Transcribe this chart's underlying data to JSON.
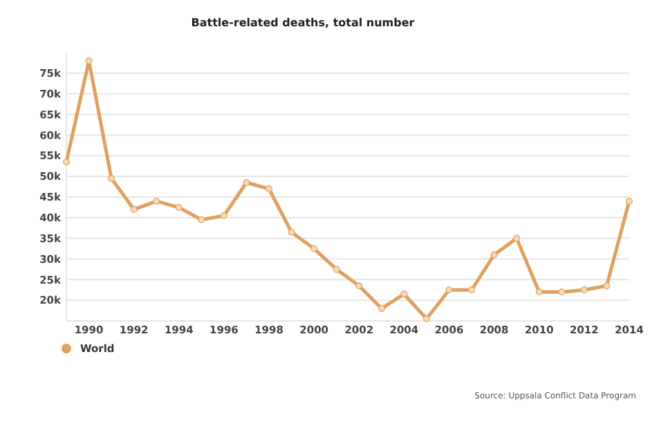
{
  "chart_data": {
    "type": "line",
    "title": "Battle-related deaths, total number",
    "x": [
      1989,
      1990,
      1991,
      1992,
      1993,
      1994,
      1995,
      1996,
      1997,
      1998,
      1999,
      2000,
      2001,
      2002,
      2003,
      2004,
      2005,
      2006,
      2007,
      2008,
      2009,
      2010,
      2011,
      2012,
      2013,
      2014
    ],
    "series": [
      {
        "name": "World",
        "color": "#e0a060",
        "values": [
          53500,
          78000,
          49500,
          42000,
          44000,
          42500,
          39500,
          40500,
          48500,
          47000,
          36500,
          32500,
          27500,
          23500,
          18000,
          21500,
          15500,
          22500,
          22500,
          31000,
          35000,
          22000,
          22000,
          22500,
          23500,
          44000
        ]
      }
    ],
    "xlim": [
      1989,
      2014
    ],
    "xticks": [
      1990,
      1992,
      1994,
      1996,
      1998,
      2000,
      2002,
      2004,
      2006,
      2008,
      2010,
      2012,
      2014
    ],
    "ylim": [
      15000,
      80000
    ],
    "yticks": [
      {
        "value": 20000,
        "label": "20k"
      },
      {
        "value": 25000,
        "label": "25k"
      },
      {
        "value": 30000,
        "label": "30k"
      },
      {
        "value": 35000,
        "label": "35k"
      },
      {
        "value": 40000,
        "label": "40k"
      },
      {
        "value": 45000,
        "label": "45k"
      },
      {
        "value": 50000,
        "label": "50k"
      },
      {
        "value": 55000,
        "label": "55k"
      },
      {
        "value": 60000,
        "label": "60k"
      },
      {
        "value": 65000,
        "label": "65k"
      },
      {
        "value": 70000,
        "label": "70k"
      },
      {
        "value": 75000,
        "label": "75k"
      }
    ],
    "grid": "y",
    "legend": "bottom left",
    "marker": "circle",
    "line_style": "solid",
    "annotations": [
      "Source: Uppsala Conflict Data Program"
    ]
  }
}
